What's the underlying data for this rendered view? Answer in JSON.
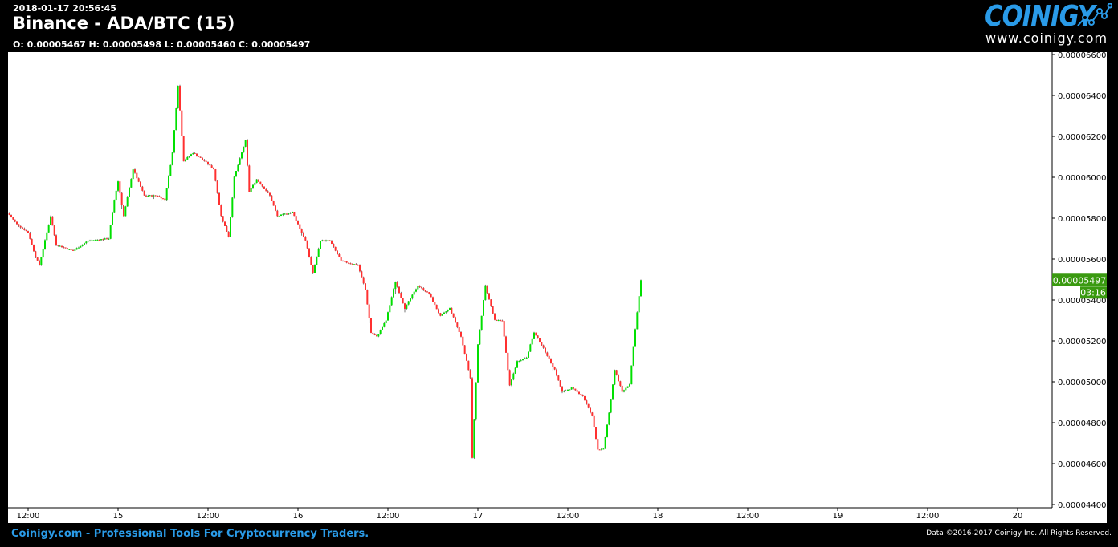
{
  "header": {
    "timestamp": "2018-01-17 20:56:45",
    "title": "Binance - ADA/BTC (15)",
    "ohlc": "O: 0.00005467 H: 0.00005498 L: 0.00005460 C: 0.00005497"
  },
  "logo": {
    "name": "COINIGY",
    "url": "www.coinigy.com"
  },
  "footer": {
    "tagline": "Coinigy.com - Professional Tools For Cryptocurrency Traders.",
    "copyright": "Data ©2016-2017 Coinigy Inc. All Rights Reserved."
  },
  "colors": {
    "up": "#00e000",
    "down": "#ff3030",
    "last_price_badge": "#3a9a10"
  },
  "chart_data": {
    "type": "candlestick",
    "interval": "15",
    "ylim": [
      4.4e-05,
      6.6e-05
    ],
    "y_ticks": [
      "0.00006600",
      "0.00006400",
      "0.00006200",
      "0.00006000",
      "0.00005800",
      "0.00005600",
      "0.00005400",
      "0.00005200",
      "0.00005000",
      "0.00004800",
      "0.00004600",
      "0.00004400"
    ],
    "x_ticks": [
      "12:00",
      "15",
      "12:00",
      "16",
      "12:00",
      "17",
      "12:00",
      "18",
      "12:00",
      "19",
      "12:00",
      "20"
    ],
    "last_price": "0.00005497",
    "countdown": "03:16",
    "grid": false,
    "approx_close_path": [
      [
        "01-14 09:15",
        5.827e-05
      ],
      [
        "01-14 10:30",
        5.77e-05
      ],
      [
        "01-14 12:00",
        5.73e-05
      ],
      [
        "01-14 13:00",
        5.61e-05
      ],
      [
        "01-14 13:30",
        5.57e-05
      ],
      [
        "01-14 15:00",
        5.81e-05
      ],
      [
        "01-14 15:45",
        5.67e-05
      ],
      [
        "01-14 18:00",
        5.64e-05
      ],
      [
        "01-14 20:00",
        5.69e-05
      ],
      [
        "01-14 22:45",
        5.7e-05
      ],
      [
        "01-14 23:30",
        5.89e-05
      ],
      [
        "01-15 00:00",
        5.98e-05
      ],
      [
        "01-15 00:45",
        5.81e-05
      ],
      [
        "01-15 02:00",
        6.04e-05
      ],
      [
        "01-15 03:30",
        5.91e-05
      ],
      [
        "01-15 05:15",
        5.91e-05
      ],
      [
        "01-15 06:15",
        5.89e-05
      ],
      [
        "01-15 07:15",
        6.12e-05
      ],
      [
        "01-15 08:00",
        6.45e-05
      ],
      [
        "01-15 08:45",
        6.08e-05
      ],
      [
        "01-15 10:00",
        6.12e-05
      ],
      [
        "01-15 11:30",
        6.08e-05
      ],
      [
        "01-15 12:45",
        6.04e-05
      ],
      [
        "01-15 13:45",
        5.81e-05
      ],
      [
        "01-15 14:45",
        5.71e-05
      ],
      [
        "01-15 15:30",
        6e-05
      ],
      [
        "01-15 17:00",
        6.18e-05
      ],
      [
        "01-15 17:30",
        5.93e-05
      ],
      [
        "01-15 18:30",
        5.99e-05
      ],
      [
        "01-15 20:15",
        5.91e-05
      ],
      [
        "01-15 21:15",
        5.81e-05
      ],
      [
        "01-15 23:15",
        5.83e-05
      ],
      [
        "01-16 01:00",
        5.69e-05
      ],
      [
        "01-16 02:00",
        5.53e-05
      ],
      [
        "01-16 03:00",
        5.69e-05
      ],
      [
        "01-16 04:15",
        5.69e-05
      ],
      [
        "01-16 05:45",
        5.59e-05
      ],
      [
        "01-16 08:00",
        5.57e-05
      ],
      [
        "01-16 09:00",
        5.45e-05
      ],
      [
        "01-16 09:45",
        5.24e-05
      ],
      [
        "01-16 10:30",
        5.22e-05
      ],
      [
        "01-16 11:45",
        5.3e-05
      ],
      [
        "01-16 13:00",
        5.49e-05
      ],
      [
        "01-16 14:15",
        5.36e-05
      ],
      [
        "01-16 16:00",
        5.47e-05
      ],
      [
        "01-16 17:30",
        5.43e-05
      ],
      [
        "01-16 19:00",
        5.32e-05
      ],
      [
        "01-16 20:15",
        5.36e-05
      ],
      [
        "01-16 21:45",
        5.22e-05
      ],
      [
        "01-16 23:00",
        5.02e-05
      ],
      [
        "01-16 23:15",
        4.63e-05
      ],
      [
        "01-17 00:00",
        5.18e-05
      ],
      [
        "01-17 01:00",
        5.47e-05
      ],
      [
        "01-17 02:15",
        5.3e-05
      ],
      [
        "01-17 03:15",
        5.3e-05
      ],
      [
        "01-17 04:15",
        4.98e-05
      ],
      [
        "01-17 05:15",
        5.1e-05
      ],
      [
        "01-17 06:30",
        5.12e-05
      ],
      [
        "01-17 07:30",
        5.24e-05
      ],
      [
        "01-17 08:30",
        5.18e-05
      ],
      [
        "01-17 10:15",
        5.06e-05
      ],
      [
        "01-17 11:15",
        4.95e-05
      ],
      [
        "01-17 12:30",
        4.97e-05
      ],
      [
        "01-17 14:00",
        4.93e-05
      ],
      [
        "01-17 15:15",
        4.83e-05
      ],
      [
        "01-17 16:00",
        4.67e-05
      ],
      [
        "01-17 16:45",
        4.67e-05
      ],
      [
        "01-17 17:45",
        4.91e-05
      ],
      [
        "01-17 18:15",
        5.06e-05
      ],
      [
        "01-17 19:15",
        4.95e-05
      ],
      [
        "01-17 20:15",
        4.99e-05
      ],
      [
        "01-17 21:00",
        5.26e-05
      ],
      [
        "01-17 21:45",
        5.497e-05
      ]
    ]
  }
}
